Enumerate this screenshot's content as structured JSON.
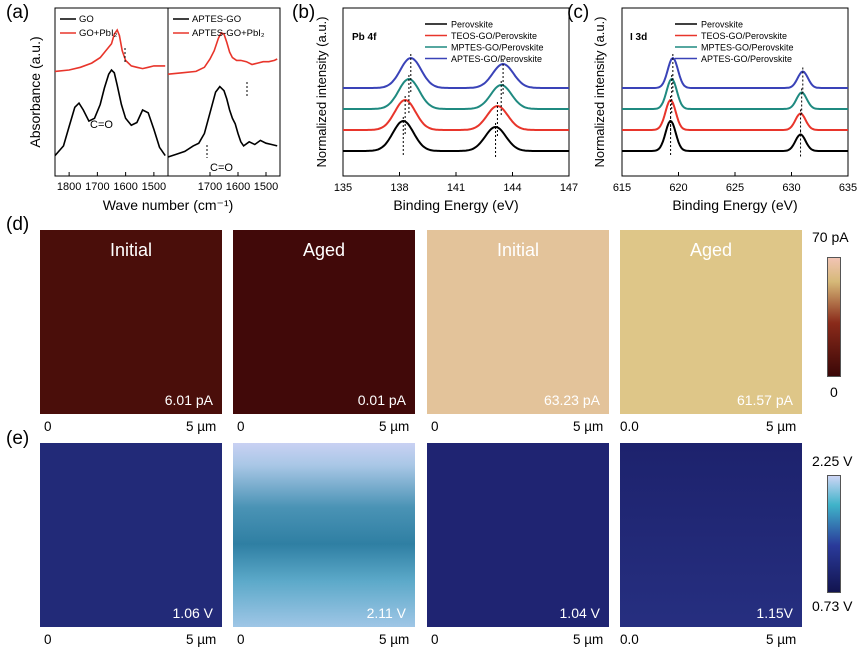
{
  "figure": {
    "panel_labels": [
      "(a)",
      "(b)",
      "(c)",
      "(d)",
      "(e)"
    ]
  },
  "colors": {
    "black": "#000000",
    "red": "#e8352b",
    "teal": "#1f8a80",
    "blue": "#3a43b8",
    "cpd_low": "#1c1f6a",
    "cpd_high": "#c4cdf0",
    "current_low": "#3a0707",
    "current_high": "#f0c9a0"
  },
  "chart_data": [
    {
      "panel": "(a)",
      "type": "line",
      "title": "",
      "xlabel": "Wave number (cm⁻¹)",
      "ylabel": "Absorbance (a.u.)",
      "xlim": [
        1850,
        1450
      ],
      "subplots": [
        {
          "xticks": [
            1800,
            1700,
            1600,
            1500
          ],
          "series": [
            {
              "name": "GO",
              "color": "#000000",
              "x": [
                1850,
                1820,
                1800,
                1780,
                1765,
                1750,
                1730,
                1710,
                1690,
                1675,
                1660,
                1650,
                1640,
                1630,
                1615,
                1600,
                1580,
                1560,
                1540,
                1520,
                1500,
                1480,
                1460
              ],
              "y": [
                0.09,
                0.16,
                0.3,
                0.44,
                0.47,
                0.42,
                0.34,
                0.36,
                0.46,
                0.58,
                0.68,
                0.71,
                0.69,
                0.6,
                0.46,
                0.36,
                0.31,
                0.33,
                0.42,
                0.4,
                0.28,
                0.15,
                0.09
              ]
            },
            {
              "name": "GO+PbI₂",
              "color": "#e8352b",
              "x": [
                1850,
                1800,
                1760,
                1720,
                1690,
                1670,
                1650,
                1640,
                1630,
                1622,
                1612,
                1600,
                1580,
                1560,
                1540,
                1520,
                1500,
                1480,
                1460
              ],
              "y": [
                0.7,
                0.71,
                0.73,
                0.76,
                0.8,
                0.85,
                0.9,
                0.97,
                1.0,
                0.96,
                0.85,
                0.78,
                0.74,
                0.73,
                0.72,
                0.73,
                0.74,
                0.74,
                0.74
              ]
            }
          ],
          "annotations": [
            "C=O"
          ]
        },
        {
          "xticks": [
            1700,
            1600,
            1500
          ],
          "series": [
            {
              "name": "APTES-GO",
              "color": "#000000",
              "x": [
                1850,
                1820,
                1790,
                1760,
                1740,
                1720,
                1700,
                1680,
                1665,
                1650,
                1640,
                1630,
                1620,
                1610,
                1600,
                1590,
                1580,
                1560,
                1540,
                1520,
                1500,
                1480,
                1460
              ],
              "y": [
                0.08,
                0.1,
                0.12,
                0.16,
                0.18,
                0.25,
                0.4,
                0.55,
                0.59,
                0.56,
                0.5,
                0.42,
                0.36,
                0.32,
                0.25,
                0.19,
                0.16,
                0.19,
                0.17,
                0.2,
                0.18,
                0.17,
                0.16
              ]
            },
            {
              "name": "APTES-GO+PbI₂",
              "color": "#e8352b",
              "x": [
                1850,
                1800,
                1750,
                1720,
                1700,
                1685,
                1670,
                1660,
                1650,
                1640,
                1630,
                1620,
                1605,
                1590,
                1570,
                1550,
                1530,
                1510,
                1490,
                1470,
                1460
              ],
              "y": [
                0.68,
                0.69,
                0.7,
                0.73,
                0.79,
                0.85,
                0.94,
                0.98,
                0.97,
                0.91,
                0.84,
                0.8,
                0.78,
                0.78,
                0.77,
                0.75,
                0.76,
                0.77,
                0.77,
                0.78,
                0.79
              ]
            }
          ],
          "annotations": [
            "C=O"
          ]
        }
      ]
    },
    {
      "panel": "(b)",
      "type": "line",
      "title": "Pb 4f",
      "xlabel": "Binding Energy (eV)",
      "ylabel": "Normalized intensity (a.u.)",
      "xlim": [
        135,
        147
      ],
      "xticks": [
        135,
        138,
        141,
        144,
        147
      ],
      "peaks_eV": {
        "Perovskite": [
          138.2,
          143.1
        ],
        "TEOS-GO/Perovskite": [
          138.3,
          143.2
        ],
        "MPTES-GO/Perovskite": [
          138.5,
          143.4
        ],
        "APTES-GO/Perovskite": [
          138.6,
          143.5
        ]
      },
      "series": [
        {
          "name": "Perovskite",
          "color": "#000000"
        },
        {
          "name": "TEOS-GO/Perovskite",
          "color": "#e8352b"
        },
        {
          "name": "MPTES-GO/Perovskite",
          "color": "#1f8a80"
        },
        {
          "name": "APTES-GO/Perovskite",
          "color": "#3a43b8"
        }
      ]
    },
    {
      "panel": "(c)",
      "type": "line",
      "title": "I 3d",
      "xlabel": "Binding Energy (eV)",
      "ylabel": "Normalized intensity (a.u.)",
      "xlim": [
        615,
        635
      ],
      "xticks": [
        615,
        620,
        625,
        630,
        635
      ],
      "peaks_eV": {
        "Perovskite": [
          619.3,
          630.8
        ],
        "TEOS-GO/Perovskite": [
          619.3,
          630.8
        ],
        "MPTES-GO/Perovskite": [
          619.4,
          630.9
        ],
        "APTES-GO/Perovskite": [
          619.5,
          631.0
        ]
      },
      "series": [
        {
          "name": "Perovskite",
          "color": "#000000"
        },
        {
          "name": "TEOS-GO/Perovskite",
          "color": "#e8352b"
        },
        {
          "name": "MPTES-GO/Perovskite",
          "color": "#1f8a80"
        },
        {
          "name": "APTES-GO/Perovskite",
          "color": "#3a43b8"
        }
      ]
    }
  ],
  "panel_d": {
    "tiles": [
      {
        "title": "Initial",
        "value": "6.01 pA",
        "level": 0.09,
        "x0": "0",
        "x1": "5 µm"
      },
      {
        "title": "Aged",
        "value": "0.01 pA",
        "level": 0.01,
        "x0": "0",
        "x1": "5 µm"
      },
      {
        "title": "Initial",
        "value": "63.23 pA",
        "level": 0.9,
        "x0": "0",
        "x1": "5 µm"
      },
      {
        "title": "Aged",
        "value": "61.57 pA",
        "level": 0.88,
        "x0": "0.0",
        "x1": "5 µm"
      }
    ],
    "colorbar": {
      "max": "70 pA",
      "min": "0"
    }
  },
  "panel_e": {
    "tiles": [
      {
        "value": "1.06 V",
        "level": 0.22,
        "x0": "0",
        "x1": "5 µm"
      },
      {
        "value": "2.11 V",
        "level": 0.9,
        "x0": "0",
        "x1": "5 µm"
      },
      {
        "value": "1.04 V",
        "level": 0.21,
        "x0": "0",
        "x1": "5 µm"
      },
      {
        "value": "1.15V",
        "level": 0.28,
        "x0": "0.0",
        "x1": "5 µm"
      }
    ],
    "colorbar": {
      "max": "2.25 V",
      "min": "0.73 V"
    }
  }
}
